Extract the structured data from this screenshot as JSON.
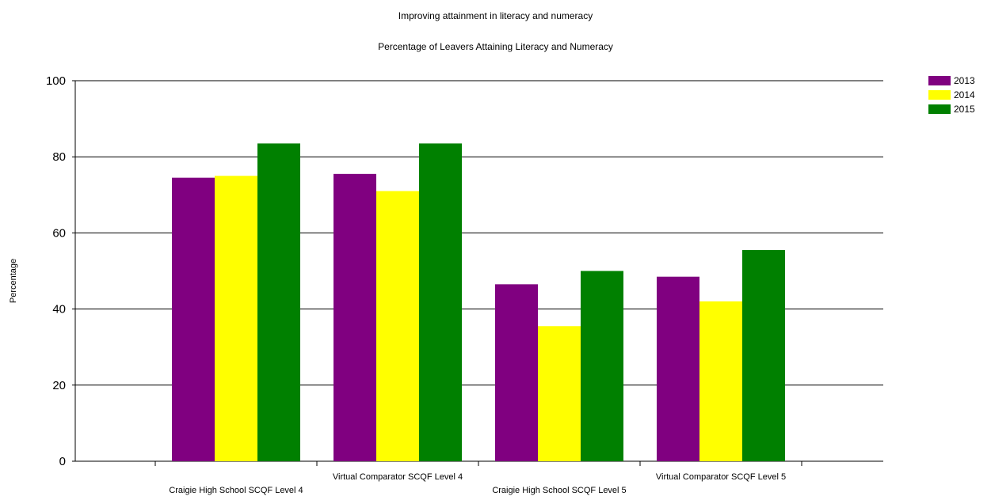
{
  "chart_data": {
    "type": "bar",
    "title": "Improving attainment in literacy and numeracy",
    "subtitle": "Percentage of Leavers Attaining Literacy and Numeracy",
    "xlabel": "",
    "ylabel": "Percentage",
    "ylim": [
      0,
      100
    ],
    "yticks": [
      "0",
      "20",
      "40",
      "60",
      "80",
      "100"
    ],
    "categories": [
      "Craigie High School SCQF Level 4",
      "Virtual Comparator SCQF Level 4",
      "Craigie High School SCQF Level 5",
      "Virtual Comparator SCQF Level 5"
    ],
    "series": [
      {
        "name": "2013",
        "color": "#800080",
        "values": [
          74.5,
          75.5,
          46.5,
          48.5
        ]
      },
      {
        "name": "2014",
        "color": "#FFFF00",
        "values": [
          75,
          71,
          35.5,
          42
        ]
      },
      {
        "name": "2015",
        "color": "#008000",
        "values": [
          83.5,
          83.5,
          50,
          55.5
        ]
      }
    ],
    "grid": true,
    "legend_position": "top-right"
  }
}
